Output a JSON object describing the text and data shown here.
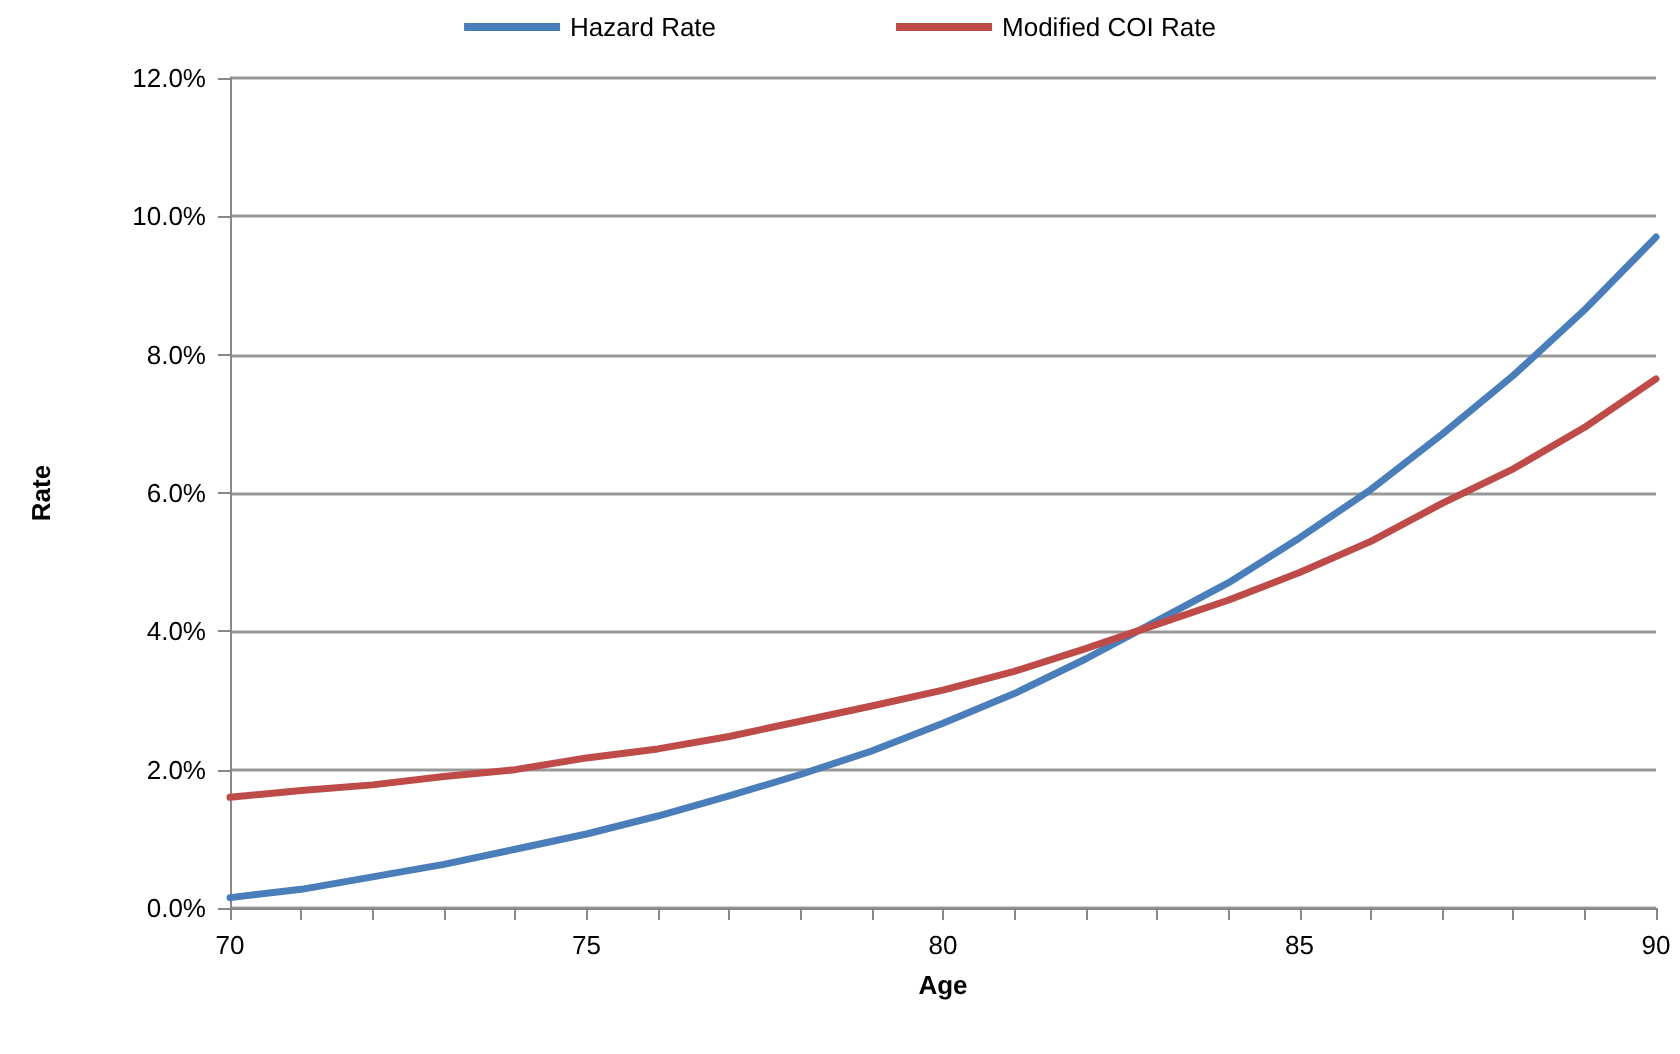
{
  "chart_data": {
    "type": "line",
    "xlabel": "Age",
    "ylabel": "Rate",
    "x": [
      70,
      71,
      72,
      73,
      74,
      75,
      76,
      77,
      78,
      79,
      80,
      81,
      82,
      83,
      84,
      85,
      86,
      87,
      88,
      89,
      90
    ],
    "series": [
      {
        "name": "Hazard Rate",
        "color": "#4a7ebb",
        "values": [
          0.15,
          0.27,
          0.45,
          0.63,
          0.85,
          1.07,
          1.33,
          1.62,
          1.93,
          2.27,
          2.67,
          3.1,
          3.6,
          4.15,
          4.7,
          5.35,
          6.05,
          6.85,
          7.7,
          8.65,
          9.7
        ]
      },
      {
        "name": "Modified COI Rate",
        "color": "#be4b48",
        "values": [
          1.6,
          1.7,
          1.78,
          1.9,
          2.0,
          2.17,
          2.3,
          2.48,
          2.7,
          2.92,
          3.15,
          3.42,
          3.75,
          4.1,
          4.45,
          4.85,
          5.3,
          5.85,
          6.35,
          6.95,
          7.65
        ]
      }
    ],
    "xlim": [
      70,
      90
    ],
    "xticks": [
      70,
      {
        "value": 71,
        "label": null
      },
      {
        "value": 72,
        "label": null
      },
      {
        "value": 73,
        "label": null
      },
      {
        "value": 74,
        "label": null
      },
      75,
      {
        "value": 76,
        "label": null
      },
      {
        "value": 77,
        "label": null
      },
      {
        "value": 78,
        "label": null
      },
      {
        "value": 79,
        "label": null
      },
      80,
      {
        "value": 81,
        "label": null
      },
      {
        "value": 82,
        "label": null
      },
      {
        "value": 83,
        "label": null
      },
      {
        "value": 84,
        "label": null
      },
      85,
      {
        "value": 86,
        "label": null
      },
      {
        "value": 87,
        "label": null
      },
      {
        "value": 88,
        "label": null
      },
      {
        "value": 89,
        "label": null
      },
      90
    ],
    "ylim": [
      0,
      12
    ],
    "yticks": [
      {
        "value": 0,
        "label": "0.0%"
      },
      {
        "value": 2,
        "label": "2.0%"
      },
      {
        "value": 4,
        "label": "4.0%"
      },
      {
        "value": 6,
        "label": "6.0%"
      },
      {
        "value": 8,
        "label": "8.0%"
      },
      {
        "value": 10,
        "label": "10.0%"
      },
      {
        "value": 12,
        "label": "12.0%"
      }
    ],
    "grid": "y",
    "legend": "top",
    "marker": "none",
    "line_style": "solid"
  }
}
